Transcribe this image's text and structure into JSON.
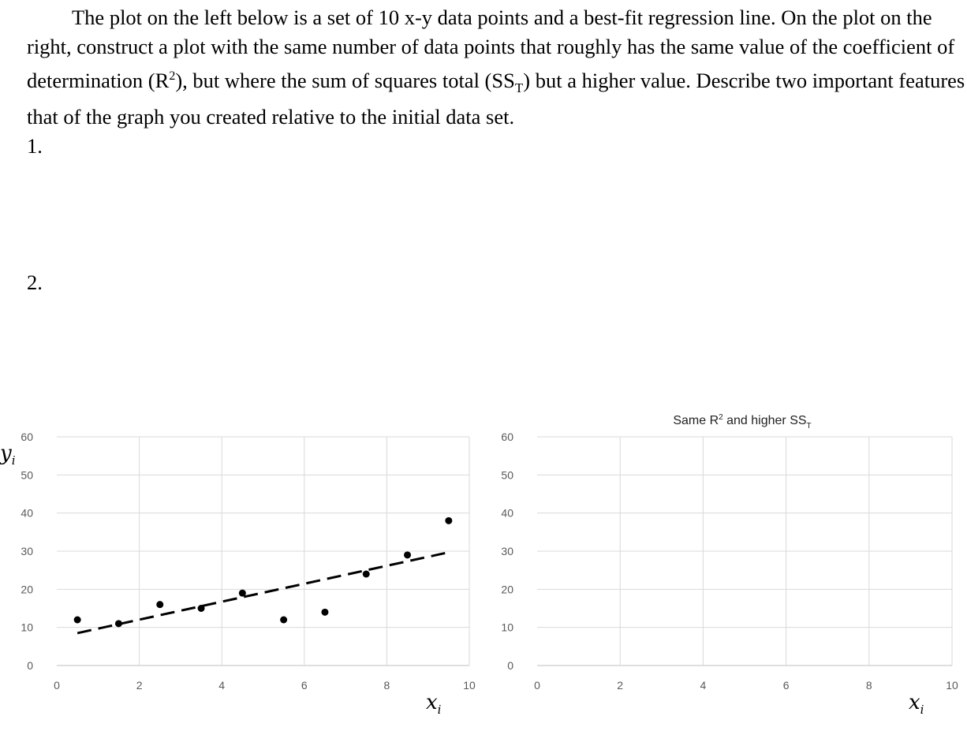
{
  "question": {
    "text_parts": [
      "The plot on the left below is a set of 10 x-y data points and a best-fit regression line. On the plot on the right, construct a plot with the same number of data points that roughly has the same value of the coefficient of determination (R",
      "2",
      "), but where the sum of squares total (SS",
      "T",
      ") but a higher value. Describe two important features that of the graph you created relative to the initial data set."
    ],
    "item1": "1.",
    "item2": "2."
  },
  "chart_data": [
    {
      "type": "scatter",
      "title": "",
      "xlabel": "x_i",
      "ylabel": "y_i",
      "xlim": [
        0,
        10
      ],
      "ylim": [
        0,
        60
      ],
      "xticks": [
        "0",
        "2",
        "4",
        "6",
        "8",
        "10"
      ],
      "yticks": [
        "0",
        "10",
        "20",
        "30",
        "40",
        "50",
        "60"
      ],
      "grid": true,
      "points": {
        "x": [
          0.5,
          1.5,
          2.5,
          3.5,
          4.5,
          5.5,
          6.5,
          7.5,
          8.5,
          9.5
        ],
        "y": [
          12,
          11,
          16,
          15,
          19,
          12,
          14,
          24,
          29,
          38
        ]
      },
      "regression_line": {
        "x": [
          0.5,
          9.5
        ],
        "y": [
          8.5,
          29.7
        ],
        "style": "dashed"
      }
    },
    {
      "type": "scatter",
      "title_parts": [
        "Same R",
        "2",
        " and higher SS",
        "T"
      ],
      "xlabel": "x_i",
      "ylabel": "",
      "xlim": [
        0,
        10
      ],
      "ylim": [
        0,
        60
      ],
      "xticks": [
        "0",
        "2",
        "4",
        "6",
        "8",
        "10"
      ],
      "yticks": [
        "0",
        "10",
        "20",
        "30",
        "40",
        "50",
        "60"
      ],
      "grid": true,
      "points": {
        "x": [],
        "y": []
      }
    }
  ]
}
